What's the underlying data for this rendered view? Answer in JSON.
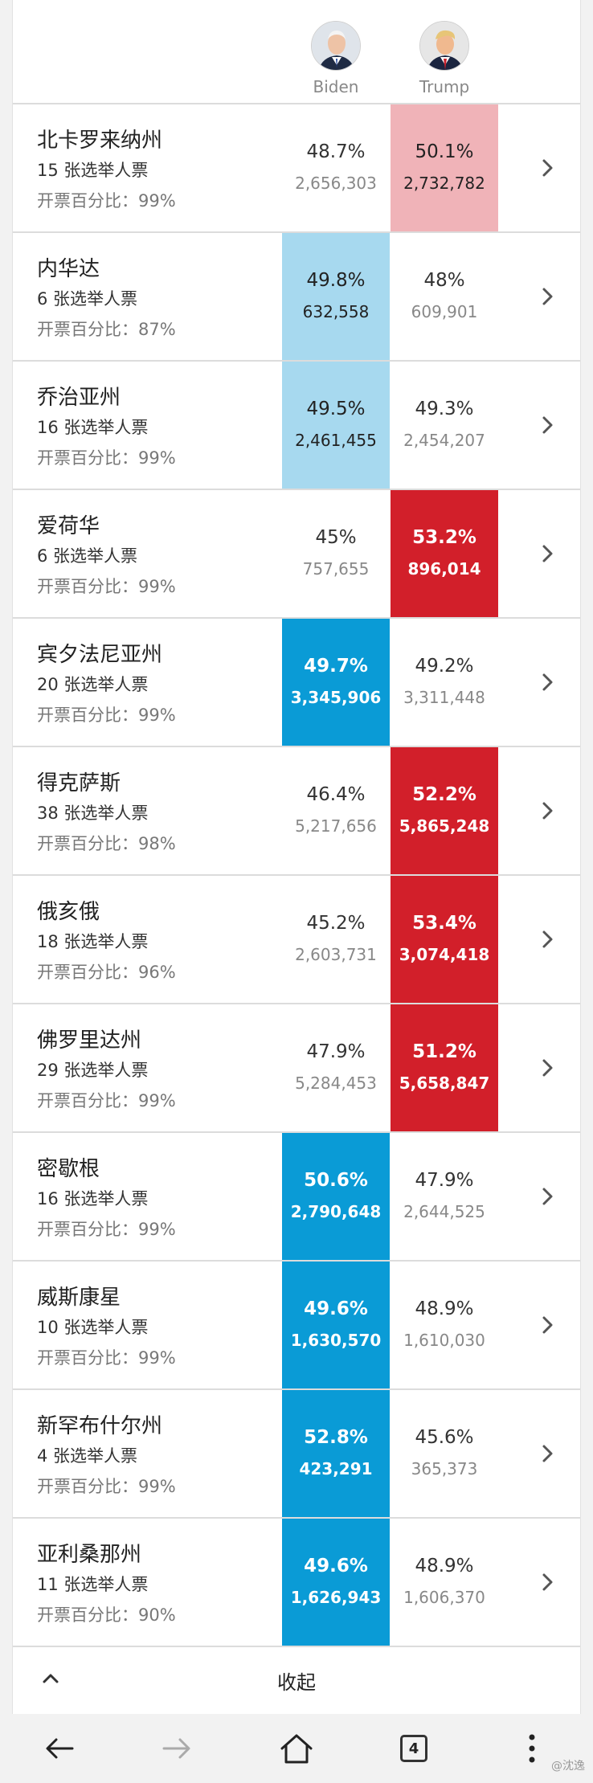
{
  "candidates": {
    "biden": {
      "name": "Biden",
      "color": "#0a9bd6"
    },
    "trump": {
      "name": "Trump",
      "color": "#d21f2a"
    }
  },
  "states": [
    {
      "name": "北卡罗来纳州",
      "electoral_votes": "15 张选举人票",
      "reported": "开票百分比：99%",
      "biden_pct": "48.7%",
      "biden_votes": "2,656,303",
      "trump_pct": "50.1%",
      "trump_votes": "2,732,782",
      "leader": "trump",
      "called": false
    },
    {
      "name": "内华达",
      "electoral_votes": "6 张选举人票",
      "reported": "开票百分比：87%",
      "biden_pct": "49.8%",
      "biden_votes": "632,558",
      "trump_pct": "48%",
      "trump_votes": "609,901",
      "leader": "biden",
      "called": false
    },
    {
      "name": "乔治亚州",
      "electoral_votes": "16 张选举人票",
      "reported": "开票百分比：99%",
      "biden_pct": "49.5%",
      "biden_votes": "2,461,455",
      "trump_pct": "49.3%",
      "trump_votes": "2,454,207",
      "leader": "biden",
      "called": false
    },
    {
      "name": "爱荷华",
      "electoral_votes": "6 张选举人票",
      "reported": "开票百分比：99%",
      "biden_pct": "45%",
      "biden_votes": "757,655",
      "trump_pct": "53.2%",
      "trump_votes": "896,014",
      "leader": "trump",
      "called": true
    },
    {
      "name": "宾夕法尼亚州",
      "electoral_votes": "20 张选举人票",
      "reported": "开票百分比：99%",
      "biden_pct": "49.7%",
      "biden_votes": "3,345,906",
      "trump_pct": "49.2%",
      "trump_votes": "3,311,448",
      "leader": "biden",
      "called": true
    },
    {
      "name": "得克萨斯",
      "electoral_votes": "38 张选举人票",
      "reported": "开票百分比：98%",
      "biden_pct": "46.4%",
      "biden_votes": "5,217,656",
      "trump_pct": "52.2%",
      "trump_votes": "5,865,248",
      "leader": "trump",
      "called": true
    },
    {
      "name": "俄亥俄",
      "electoral_votes": "18 张选举人票",
      "reported": "开票百分比：96%",
      "biden_pct": "45.2%",
      "biden_votes": "2,603,731",
      "trump_pct": "53.4%",
      "trump_votes": "3,074,418",
      "leader": "trump",
      "called": true
    },
    {
      "name": "佛罗里达州",
      "electoral_votes": "29 张选举人票",
      "reported": "开票百分比：99%",
      "biden_pct": "47.9%",
      "biden_votes": "5,284,453",
      "trump_pct": "51.2%",
      "trump_votes": "5,658,847",
      "leader": "trump",
      "called": true
    },
    {
      "name": "密歇根",
      "electoral_votes": "16 张选举人票",
      "reported": "开票百分比：99%",
      "biden_pct": "50.6%",
      "biden_votes": "2,790,648",
      "trump_pct": "47.9%",
      "trump_votes": "2,644,525",
      "leader": "biden",
      "called": true
    },
    {
      "name": "威斯康星",
      "electoral_votes": "10 张选举人票",
      "reported": "开票百分比：99%",
      "biden_pct": "49.6%",
      "biden_votes": "1,630,570",
      "trump_pct": "48.9%",
      "trump_votes": "1,610,030",
      "leader": "biden",
      "called": true
    },
    {
      "name": "新罕布什尔州",
      "electoral_votes": "4 张选举人票",
      "reported": "开票百分比：99%",
      "biden_pct": "52.8%",
      "biden_votes": "423,291",
      "trump_pct": "45.6%",
      "trump_votes": "365,373",
      "leader": "biden",
      "called": true
    },
    {
      "name": "亚利桑那州",
      "electoral_votes": "11 张选举人票",
      "reported": "开票百分比：90%",
      "biden_pct": "49.6%",
      "biden_votes": "1,626,943",
      "trump_pct": "48.9%",
      "trump_votes": "1,606,370",
      "leader": "biden",
      "called": true
    }
  ],
  "collapse_label": "收起",
  "navbar": {
    "tab_count": "4",
    "watermark": "@沈逸",
    "icons": [
      "back-arrow-icon",
      "forward-arrow-icon",
      "home-icon",
      "tabs-icon",
      "more-vertical-icon"
    ]
  }
}
